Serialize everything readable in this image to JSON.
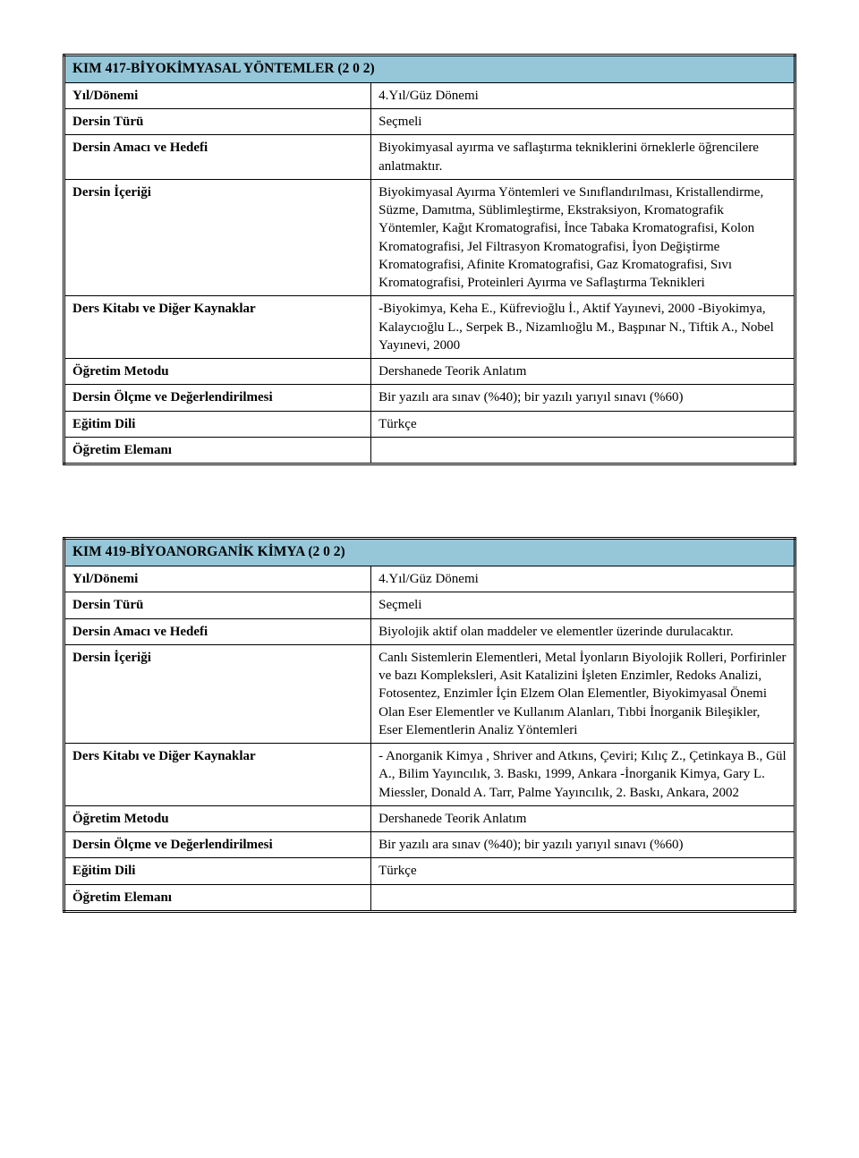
{
  "colors": {
    "header_bg": "#95c7d9",
    "border": "#000000",
    "text": "#000000",
    "page_bg": "#ffffff"
  },
  "typography": {
    "font_family": "Times New Roman",
    "base_size_pt": 12,
    "title_weight": "bold"
  },
  "labels": {
    "year_term": "Yıl/Dönemi",
    "course_type": "Dersin Türü",
    "aim": "Dersin Amacı ve Hedefi",
    "content": "Dersin İçeriği",
    "textbook": "Ders Kitabı ve Diğer Kaynaklar",
    "method": "Öğretim Metodu",
    "assessment": "Dersin Ölçme ve Değerlendirilmesi",
    "language": "Eğitim Dili",
    "instructor": "Öğretim Elemanı"
  },
  "courses": [
    {
      "title": "KIM 417-BİYOKİMYASAL YÖNTEMLER (2 0 2)",
      "year_term": "4.Yıl/Güz Dönemi",
      "course_type": "Seçmeli",
      "aim": "Biyokimyasal ayırma ve saflaştırma tekniklerini örneklerle öğrencilere anlatmaktır.",
      "content": "Biyokimyasal Ayırma Yöntemleri ve Sınıflandırılması, Kristallendirme, Süzme, Damıtma, Süblimleştirme, Ekstraksiyon, Kromatografik Yöntemler, Kağıt Kromatografisi, İnce Tabaka Kromatografisi, Kolon Kromatografisi, Jel Filtrasyon Kromatografisi, İyon Değiştirme Kromatografisi, Afinite Kromatografisi, Gaz Kromatografisi, Sıvı Kromatografisi, Proteinleri Ayırma ve Saflaştırma Teknikleri",
      "textbook": "-Biyokimya, Keha E., Küfrevioğlu İ., Aktif Yayınevi, 2000 -Biyokimya, Kalaycıoğlu L., Serpek B., Nizamlıoğlu M., Başpınar N., Tiftik A., Nobel Yayınevi, 2000",
      "method": "Dershanede Teorik Anlatım",
      "assessment": "Bir yazılı ara sınav (%40); bir yazılı yarıyıl sınavı (%60)",
      "language": "Türkçe",
      "instructor": ""
    },
    {
      "title": "KIM 419-BİYOANORGANİK KİMYA (2 0 2)",
      "year_term": "4.Yıl/Güz Dönemi",
      "course_type": "Seçmeli",
      "aim": "Biyolojik aktif olan maddeler ve elementler üzerinde durulacaktır.",
      "content": "Canlı Sistemlerin Elementleri, Metal İyonların Biyolojik Rolleri, Porfirinler ve bazı Kompleksleri, Asit Katalizini İşleten Enzimler, Redoks Analizi, Fotosentez, Enzimler İçin Elzem Olan Elementler, Biyokimyasal Önemi Olan Eser Elementler ve Kullanım Alanları, Tıbbi İnorganik Bileşikler, Eser Elementlerin Analiz Yöntemleri",
      "textbook": "- Anorganik Kimya , Shriver and Atkıns,  Çeviri; Kılıç Z., Çetinkaya B., Gül A., Bilim Yayıncılık, 3. Baskı, 1999, Ankara -İnorganik Kimya, Gary L. Miessler, Donald A. Tarr,  Palme Yayıncılık, 2. Baskı, Ankara, 2002",
      "method": "Dershanede Teorik Anlatım",
      "assessment": "Bir yazılı ara sınav (%40); bir yazılı yarıyıl sınavı (%60)",
      "language": "Türkçe",
      "instructor": ""
    }
  ]
}
